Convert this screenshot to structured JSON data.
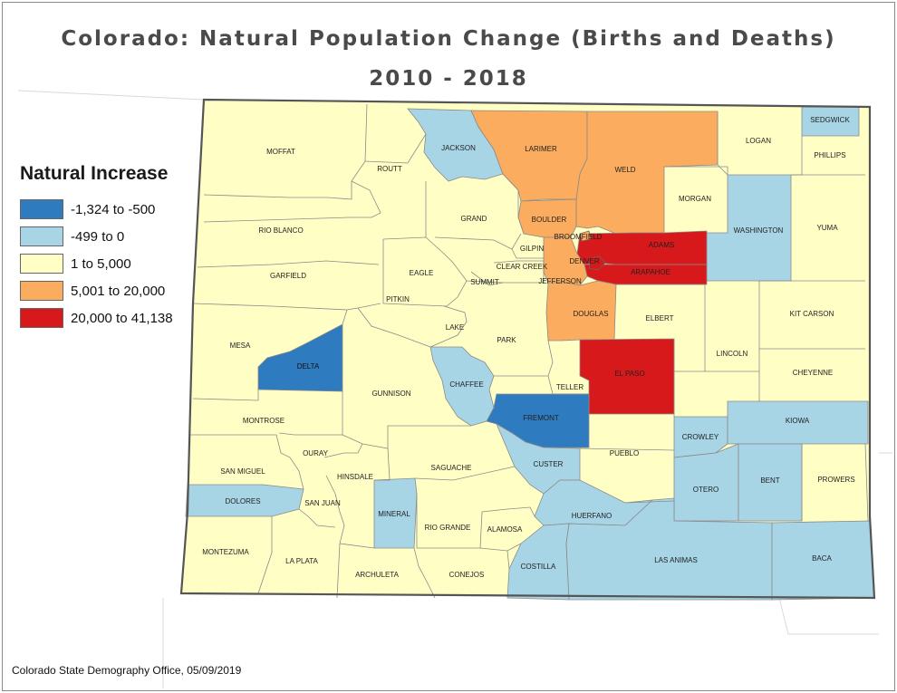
{
  "title_line1": "Colorado: Natural Population Change (Births and Deaths)",
  "title_line2": "2010 - 2018",
  "credit": "Colorado State Demography Office, 05/09/2019",
  "legend": {
    "title": "Natural Increase",
    "items": [
      {
        "label": "-1,324 to -500",
        "color": "#2e7bbf"
      },
      {
        "label": "-499 to 0",
        "color": "#a8d5e6"
      },
      {
        "label": "1 to 5,000",
        "color": "#ffffc5"
      },
      {
        "label": "5,001 to 20,000",
        "color": "#fbac5e"
      },
      {
        "label": "20,000 to 41,138",
        "color": "#d7191c"
      }
    ]
  },
  "counties": {
    "moffat": "MOFFAT",
    "routt": "ROUTT",
    "jackson": "JACKSON",
    "larimer": "LARIMER",
    "weld": "WELD",
    "logan": "LOGAN",
    "sedgwick": "SEDGWICK",
    "phillips": "PHILLIPS",
    "morgan": "MORGAN",
    "washington": "WASHINGTON",
    "yuma": "YUMA",
    "grand": "GRAND",
    "boulder": "BOULDER",
    "broomfield": "BROOMFIELD",
    "adams": "ADAMS",
    "denver": "DENVER",
    "arapahoe": "ARAPAHOE",
    "gilpin": "GILPIN",
    "clear_creek": "CLEAR CREEK",
    "jefferson": "JEFFERSON",
    "rio_blanco": "RIO BLANCO",
    "garfield": "GARFIELD",
    "eagle": "EAGLE",
    "summit": "SUMMIT",
    "douglas": "DOUGLAS",
    "elbert": "ELBERT",
    "kit_carson": "KIT CARSON",
    "mesa": "MESA",
    "pitkin": "PITKIN",
    "lake": "LAKE",
    "park": "PARK",
    "delta": "DELTA",
    "lincoln": "LINCOLN",
    "el_paso": "EL PASO",
    "cheyenne": "CHEYENNE",
    "teller": "TELLER",
    "chaffee": "CHAFFEE",
    "gunnison": "GUNNISON",
    "fremont": "FREMONT",
    "montrose": "MONTROSE",
    "kiowa": "KIOWA",
    "crowley": "CROWLEY",
    "ouray": "OURAY",
    "pueblo": "PUEBLO",
    "san_miguel": "SAN MIGUEL",
    "hinsdale": "HINSDALE",
    "saguache": "SAGUACHE",
    "custer": "CUSTER",
    "otero": "OTERO",
    "bent": "BENT",
    "prowers": "PROWERS",
    "dolores": "DOLORES",
    "san_juan": "SAN JUAN",
    "mineral": "MINERAL",
    "huerfano": "HUERFANO",
    "rio_grande": "RIO GRANDE",
    "alamosa": "ALAMOSA",
    "montezuma": "MONTEZUMA",
    "la_plata": "LA PLATA",
    "archuleta": "ARCHULETA",
    "conejos": "CONEJOS",
    "costilla": "COSTILLA",
    "las_animas": "LAS ANIMAS",
    "baca": "BACA"
  }
}
